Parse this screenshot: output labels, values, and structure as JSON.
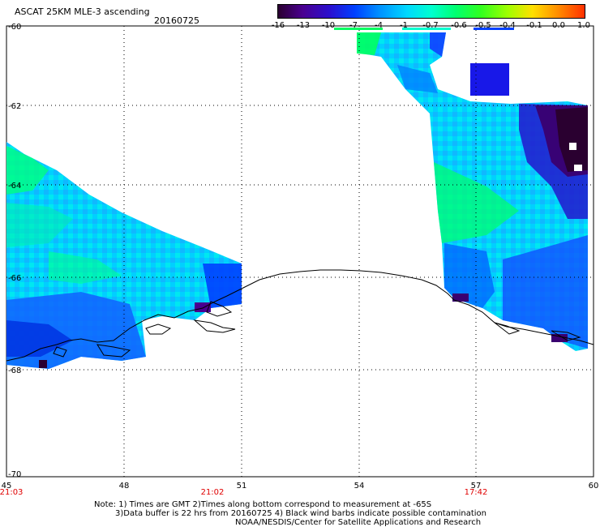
{
  "header": {
    "title": "ASCAT 25KM MLE-3 ascending",
    "date": "20160725"
  },
  "colorbar": {
    "ticks": [
      "-16",
      "-13",
      "-10",
      "-7",
      "-4",
      "-1",
      "-0.7",
      "-0.6",
      "-0.5",
      "-0.4",
      "-0.1",
      "0.0",
      "1.0"
    ],
    "colors": [
      "#2a0030",
      "#4a0090",
      "#2a10d0",
      "#0040ff",
      "#0090ff",
      "#00d8ff",
      "#00ffd0",
      "#00ff70",
      "#30ff20",
      "#a0ff00",
      "#ffe000",
      "#ff9000",
      "#ff3000"
    ]
  },
  "map": {
    "lon_ticks": [
      "45",
      "48",
      "51",
      "54",
      "57",
      "60"
    ],
    "lat_ticks": [
      "-60",
      "-62",
      "-64",
      "-66",
      "-68",
      "-70"
    ],
    "time_labels": [
      "21:03",
      "21:02",
      "17:42"
    ],
    "time_color": "#e00000",
    "coastline_color": "#000000",
    "grid_style": "dotted"
  },
  "footer": {
    "line1": "Note: 1) Times are GMT 2)Times along bottom correspond to measurement at -65S",
    "line2": "3)Data buffer is 22 hrs from 20160725 4) Black wind barbs indicate possible contamination",
    "line3": "NOAA/NESDIS/Center for Satellite Applications and Research"
  }
}
